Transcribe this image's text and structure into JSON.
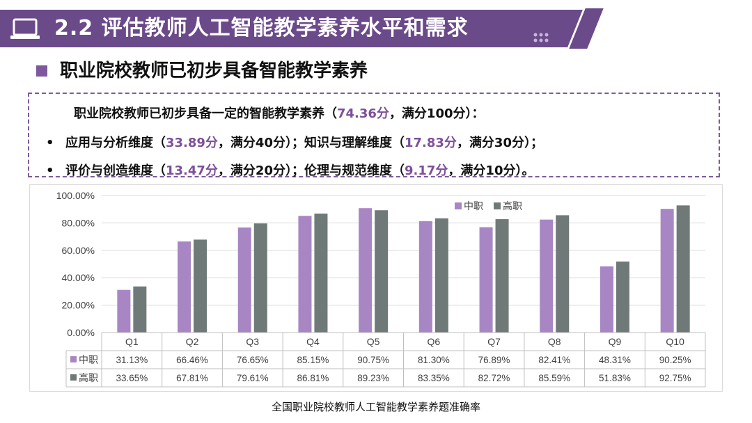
{
  "header": {
    "title": "2.2 评估教师人工智能教学素养水平和需求",
    "icon": "laptop-icon"
  },
  "section": {
    "title": "职业院校教师已初步具备智能教学素养"
  },
  "summary": {
    "line1": {
      "prefix": "职业院校教师已初步具备一定的智能教学素养（",
      "value": "74.36分",
      "suffix": "，满分100分）："
    },
    "line2": {
      "bullet": "•",
      "a_prefix": "应用与分析维度（",
      "a_value": "33.89分",
      "a_suffix": "，满分40分）；",
      "b_prefix": "知识与理解维度（",
      "b_value": "17.83分",
      "b_suffix": "，满分30分）；"
    },
    "line3": {
      "bullet": "•",
      "a_prefix": "评价与创造维度（",
      "a_value": "13.47分",
      "a_suffix": "，满分20分）；",
      "b_prefix": "伦理与规范维度（",
      "b_value": "9.17分",
      "b_suffix": "，满分10分）。"
    }
  },
  "chart_data": {
    "type": "bar",
    "categories": [
      "Q1",
      "Q2",
      "Q3",
      "Q4",
      "Q5",
      "Q6",
      "Q7",
      "Q8",
      "Q9",
      "Q10"
    ],
    "series": [
      {
        "name": "中职",
        "color": "#a886c4",
        "values": [
          31.13,
          66.46,
          76.65,
          85.15,
          90.75,
          81.3,
          76.89,
          82.41,
          48.31,
          90.25
        ],
        "labels": [
          "31.13%",
          "66.46%",
          "76.65%",
          "85.15%",
          "90.75%",
          "81.30%",
          "76.89%",
          "82.41%",
          "48.31%",
          "90.25%"
        ]
      },
      {
        "name": "高职",
        "color": "#6f7a78",
        "values": [
          33.65,
          67.81,
          79.61,
          86.81,
          89.23,
          83.35,
          82.72,
          85.59,
          51.83,
          92.75
        ],
        "labels": [
          "33.65%",
          "67.81%",
          "79.61%",
          "86.81%",
          "89.23%",
          "83.35%",
          "82.72%",
          "85.59%",
          "51.83%",
          "92.75%"
        ]
      }
    ],
    "ylim": [
      0,
      100
    ],
    "yticks": [
      "0.00%",
      "20.00%",
      "40.00%",
      "60.00%",
      "80.00%",
      "100.00%"
    ],
    "grid": true,
    "legend": "top-right",
    "data_table": true
  },
  "caption": "全国职业院校教师人工智能教学素养题准确率"
}
